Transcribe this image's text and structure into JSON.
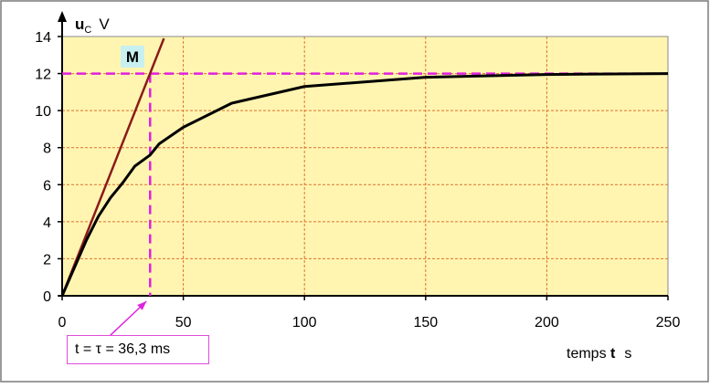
{
  "chart_data": {
    "type": "line",
    "xlim": [
      0,
      250
    ],
    "ylim": [
      0,
      14
    ],
    "x_ticks": [
      "0",
      "50",
      "100",
      "150",
      "200",
      "250"
    ],
    "y_ticks": [
      "0",
      "2",
      "4",
      "6",
      "8",
      "10",
      "12",
      "14"
    ],
    "ylabel_main": "u",
    "ylabel_sub": "C",
    "ylabel_unit": "V",
    "xlabel_main": "temps ",
    "xlabel_bold": "t",
    "xlabel_unit": "s",
    "grid": true,
    "colors": {
      "plot_bg": "#fff5b0",
      "grid": "#e07030",
      "curve": "#000000",
      "tangent": "#8b1a1a",
      "dashed": "#e020e0",
      "label_bg": "#c8f0f0"
    },
    "series": [
      {
        "x": [
          0,
          5,
          10,
          15,
          20,
          25,
          30,
          36.3,
          40,
          50,
          70,
          100,
          150,
          200,
          250
        ],
        "values": [
          0,
          1.5,
          3.0,
          4.3,
          5.3,
          6.1,
          7.0,
          7.6,
          8.2,
          9.1,
          10.4,
          11.3,
          11.8,
          11.95,
          12.0
        ]
      }
    ],
    "tangent": {
      "x": [
        0,
        42
      ],
      "values": [
        0,
        13.9
      ]
    },
    "asymptote": {
      "value": 12
    },
    "point_label": "M",
    "tau": {
      "x": 36.3,
      "label": "t = τ = 36,3 ms"
    }
  }
}
